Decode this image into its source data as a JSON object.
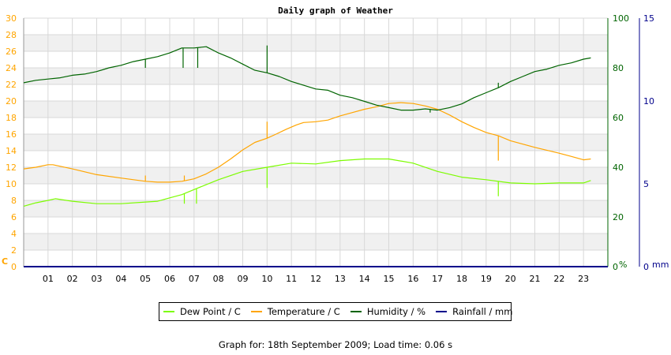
{
  "chart_data": {
    "type": "line",
    "title": "Daily graph of Weather",
    "x": {
      "label": "",
      "range": [
        0,
        24
      ],
      "ticks": [
        "01",
        "02",
        "03",
        "04",
        "05",
        "06",
        "07",
        "08",
        "09",
        "10",
        "11",
        "12",
        "13",
        "14",
        "15",
        "16",
        "17",
        "18",
        "19",
        "20",
        "21",
        "22",
        "23"
      ]
    },
    "axes": {
      "temperature": {
        "unit_label": "C",
        "range": [
          0,
          30
        ],
        "ticks": [
          "0",
          "2",
          "4",
          "6",
          "8",
          "10",
          "12",
          "14",
          "16",
          "18",
          "20",
          "22",
          "24",
          "26",
          "28",
          "30"
        ],
        "color": "#ffa500"
      },
      "humidity": {
        "unit_label": "%",
        "range": [
          0,
          100
        ],
        "ticks": [
          "0",
          "20",
          "40",
          "60",
          "80",
          "100"
        ],
        "color": "#006400"
      },
      "rainfall": {
        "unit_label": "mm",
        "range": [
          0,
          15
        ],
        "ticks": [
          "0",
          "5",
          "10",
          "15"
        ],
        "color": "#00008b"
      }
    },
    "grid": true,
    "legend_position": "bottom",
    "series": [
      {
        "name": "Dew Point / C",
        "axis": "temperature",
        "color": "#7cfc00",
        "x": [
          0,
          0.5,
          1.0,
          1.3,
          2.0,
          3.0,
          4.0,
          5.0,
          5.5,
          6.0,
          6.5,
          7.0,
          8.0,
          9.0,
          10.0,
          11.0,
          12.0,
          13.0,
          14.0,
          15.0,
          16.0,
          17.0,
          18.0,
          19.0,
          20.0,
          21.0,
          22.0,
          23.0,
          23.3
        ],
        "values": [
          7.3,
          7.7,
          8.0,
          8.2,
          7.9,
          7.6,
          7.6,
          7.8,
          7.9,
          8.3,
          8.7,
          9.3,
          10.5,
          11.5,
          12.0,
          12.5,
          12.4,
          12.8,
          13.0,
          13.0,
          12.5,
          11.5,
          10.8,
          10.5,
          10.1,
          10.0,
          10.1,
          10.1,
          10.4
        ],
        "spikes": [
          {
            "x": 6.6,
            "y": 7.6
          },
          {
            "x": 7.1,
            "y": 7.6
          },
          {
            "x": 10.0,
            "y": 9.5
          },
          {
            "x": 19.5,
            "y": 8.5
          }
        ]
      },
      {
        "name": "Temperature / C",
        "axis": "temperature",
        "color": "#ffa500",
        "x": [
          0,
          0.5,
          1.0,
          1.2,
          2.0,
          3.0,
          4.0,
          5.0,
          5.5,
          6.0,
          6.5,
          7.0,
          7.5,
          8.0,
          8.5,
          9.0,
          9.5,
          10.0,
          10.3,
          10.8,
          11.2,
          11.5,
          12.0,
          12.5,
          13.0,
          13.5,
          14.0,
          14.5,
          15.0,
          15.5,
          16.0,
          16.5,
          17.0,
          17.5,
          18.0,
          18.5,
          19.0,
          19.5,
          20.0,
          21.0,
          22.0,
          22.5,
          23.0,
          23.3
        ],
        "values": [
          11.8,
          12.0,
          12.3,
          12.3,
          11.8,
          11.1,
          10.7,
          10.3,
          10.2,
          10.2,
          10.3,
          10.6,
          11.2,
          12.0,
          13.0,
          14.1,
          15.0,
          15.5,
          15.9,
          16.6,
          17.1,
          17.4,
          17.5,
          17.7,
          18.2,
          18.6,
          19.0,
          19.3,
          19.7,
          19.8,
          19.7,
          19.4,
          19.0,
          18.3,
          17.5,
          16.8,
          16.2,
          15.8,
          15.2,
          14.4,
          13.7,
          13.3,
          12.9,
          13.0
        ],
        "spikes": [
          {
            "x": 5.0,
            "y": 11.0
          },
          {
            "x": 6.6,
            "y": 11.0
          },
          {
            "x": 10.0,
            "y": 17.5
          },
          {
            "x": 19.5,
            "y": 12.8
          }
        ]
      },
      {
        "name": "Humidity / %",
        "axis": "humidity",
        "color": "#006400",
        "x": [
          0,
          0.5,
          1.0,
          1.5,
          2.0,
          2.5,
          3.0,
          3.5,
          4.0,
          4.5,
          5.0,
          5.5,
          6.0,
          6.5,
          7.0,
          7.5,
          8.0,
          8.5,
          9.0,
          9.5,
          10.0,
          10.5,
          11.0,
          11.5,
          12.0,
          12.5,
          13.0,
          13.5,
          14.0,
          14.5,
          15.0,
          15.5,
          16.0,
          16.5,
          17.0,
          17.5,
          18.0,
          18.5,
          19.0,
          19.5,
          20.0,
          20.5,
          21.0,
          21.5,
          22.0,
          22.5,
          23.0,
          23.3
        ],
        "values": [
          74,
          75,
          75.5,
          76,
          77,
          77.5,
          78.5,
          80,
          81,
          82.5,
          83.5,
          84.5,
          86,
          88,
          88,
          88.5,
          86,
          84,
          81.5,
          79,
          78,
          76.5,
          74.5,
          73,
          71.5,
          71,
          69,
          68,
          66.5,
          65,
          64,
          63,
          63,
          63.5,
          63,
          64,
          65.5,
          68,
          70,
          72,
          74.5,
          76.5,
          78.5,
          79.5,
          81,
          82,
          83.5,
          84
        ],
        "spikes": [
          {
            "x": 5.0,
            "y": 80
          },
          {
            "x": 6.55,
            "y": 80
          },
          {
            "x": 7.15,
            "y": 80
          },
          {
            "x": 10.0,
            "y": 89
          },
          {
            "x": 16.7,
            "y": 62
          },
          {
            "x": 19.5,
            "y": 74
          }
        ]
      },
      {
        "name": "Rainfall / mm",
        "axis": "rainfall",
        "color": "#00008b",
        "x": [
          0,
          24
        ],
        "values": [
          0,
          0
        ]
      }
    ]
  },
  "footer": "Graph for: 18th September 2009; Load time: 0.06 s"
}
